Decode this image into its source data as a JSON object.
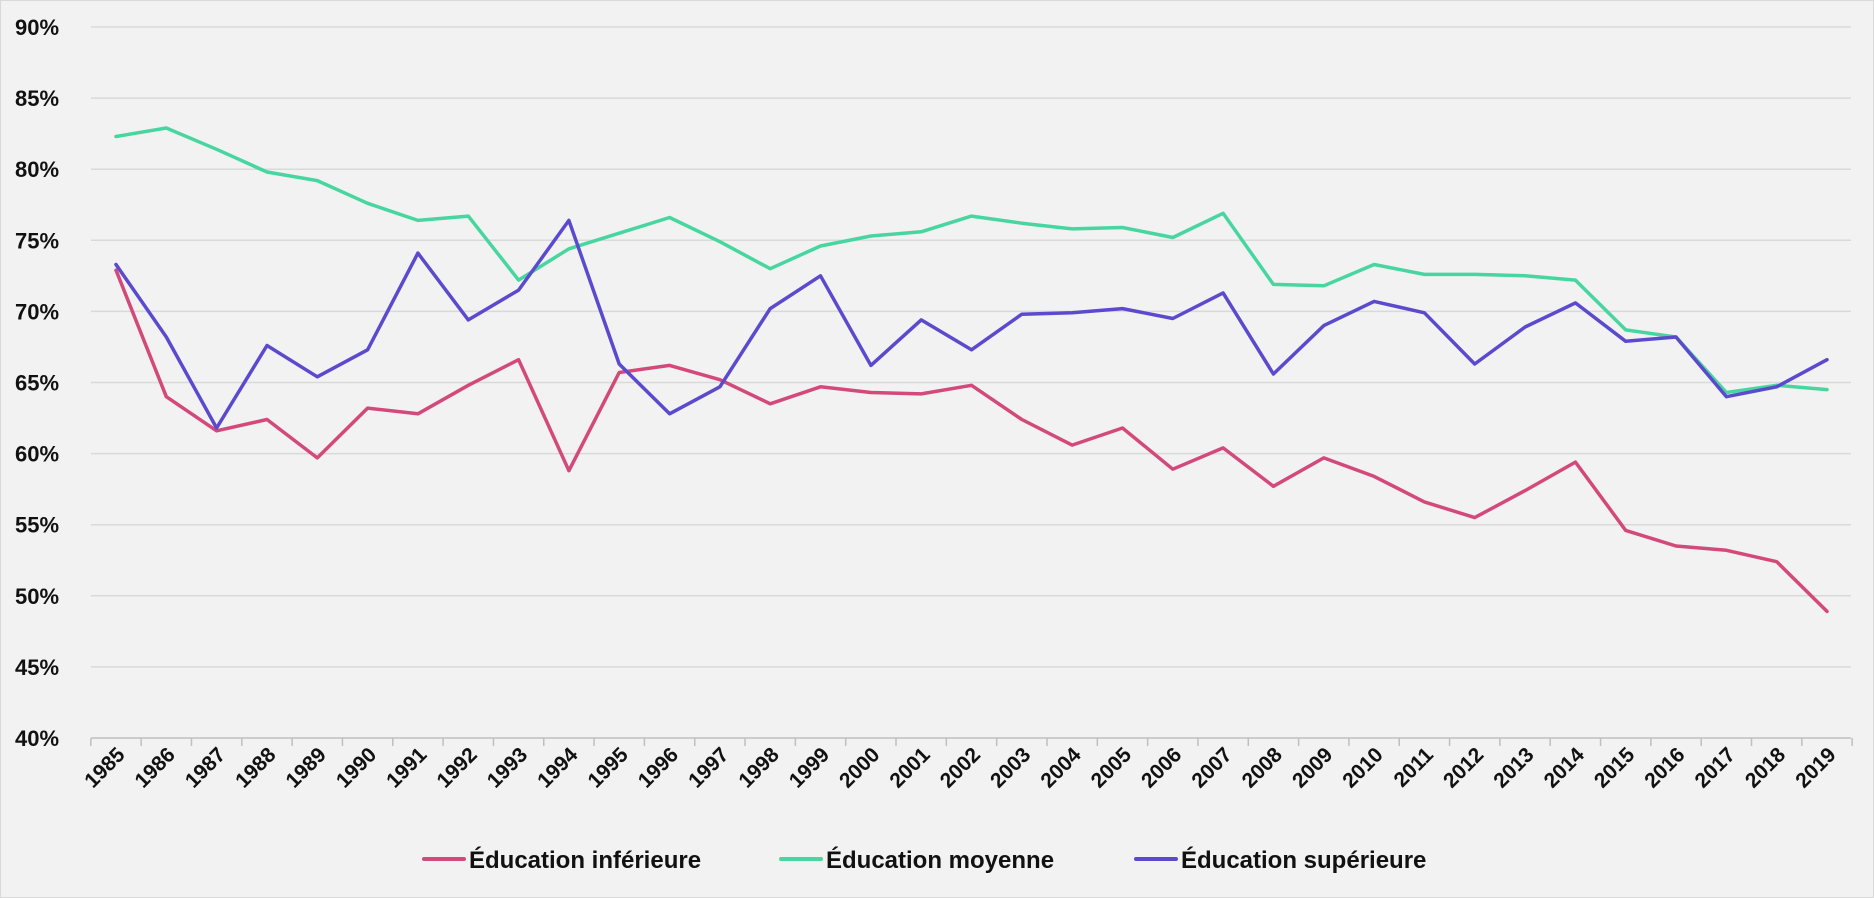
{
  "chart_data": {
    "type": "line",
    "title": "",
    "xlabel": "",
    "ylabel": "",
    "ylim": [
      40,
      90
    ],
    "ytick_step": 5,
    "ytick_suffix": "%",
    "grid": true,
    "legend_position": "bottom",
    "categories": [
      "1985",
      "1986",
      "1987",
      "1988",
      "1989",
      "1990",
      "1991",
      "1992",
      "1993",
      "1994",
      "1995",
      "1996",
      "1997",
      "1998",
      "1999",
      "2000",
      "2001",
      "2002",
      "2003",
      "2004",
      "2005",
      "2006",
      "2007",
      "2008",
      "2009",
      "2010",
      "2011",
      "2012",
      "2013",
      "2014",
      "2015",
      "2016",
      "2017",
      "2018",
      "2019"
    ],
    "series": [
      {
        "name": "Éducation inférieure",
        "color": "#d34a7a",
        "values": [
          72.9,
          64.0,
          61.6,
          62.4,
          59.7,
          63.2,
          62.8,
          64.8,
          66.6,
          58.8,
          65.7,
          66.2,
          65.2,
          63.5,
          64.7,
          64.3,
          64.2,
          64.8,
          62.4,
          60.6,
          61.8,
          58.9,
          60.4,
          57.7,
          59.7,
          58.4,
          56.6,
          55.5,
          57.4,
          59.4,
          54.6,
          53.5,
          53.2,
          52.4,
          48.9
        ]
      },
      {
        "name": "Éducation moyenne",
        "color": "#48d6a0",
        "values": [
          82.3,
          82.9,
          81.4,
          79.8,
          79.2,
          77.6,
          76.4,
          76.7,
          72.2,
          74.4,
          75.5,
          76.6,
          74.9,
          73.0,
          74.6,
          75.3,
          75.6,
          76.7,
          76.2,
          75.8,
          75.9,
          75.2,
          76.9,
          71.9,
          71.8,
          73.3,
          72.6,
          72.6,
          72.5,
          72.2,
          68.7,
          68.2,
          64.3,
          64.8,
          64.5
        ]
      },
      {
        "name": "Éducation supérieure",
        "color": "#5b4acd",
        "values": [
          73.3,
          68.2,
          61.8,
          67.6,
          65.4,
          67.3,
          74.1,
          69.4,
          71.5,
          76.4,
          66.3,
          62.8,
          64.7,
          70.2,
          72.5,
          66.2,
          69.4,
          67.3,
          69.8,
          69.9,
          70.2,
          69.5,
          71.3,
          65.6,
          69.0,
          70.7,
          69.9,
          66.3,
          68.9,
          70.6,
          67.9,
          68.2,
          64.0,
          64.7,
          66.6
        ]
      }
    ]
  }
}
